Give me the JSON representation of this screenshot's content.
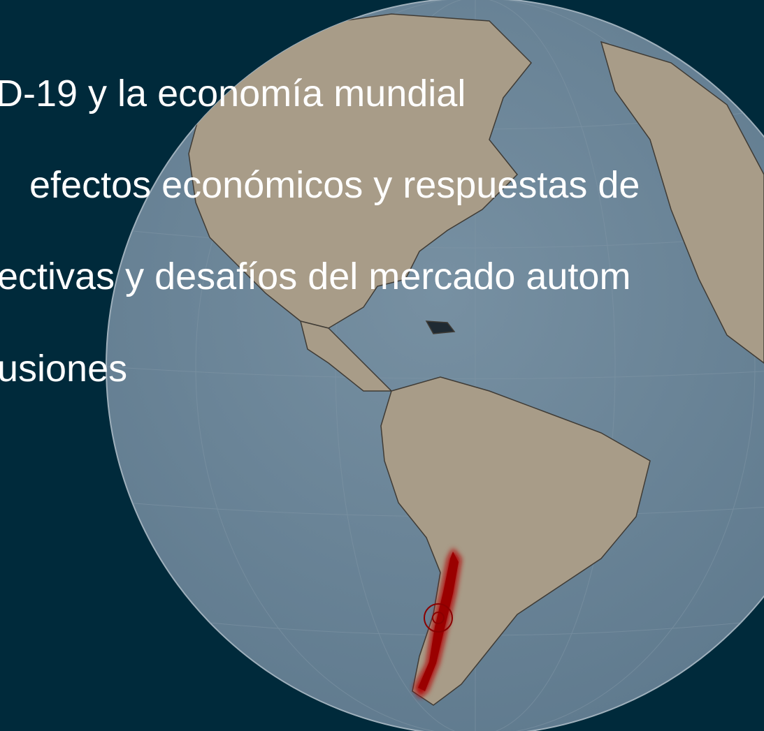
{
  "lines": [
    "D-19 y la economía mundial",
    "efectos económicos y respuestas de",
    "ectivas y desafíos del mercado autom",
    "usiones"
  ]
}
